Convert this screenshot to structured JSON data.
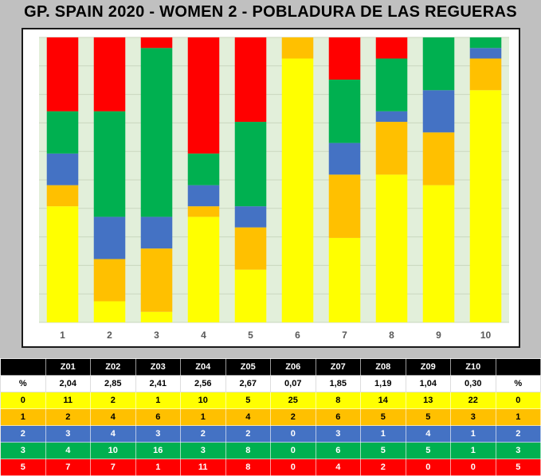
{
  "title": "GP. SPAIN 2020 - WOMEN 2 - POBLADURA DE LAS REGUERAS",
  "chart_data": {
    "type": "bar",
    "stacked": true,
    "categories": [
      "1",
      "2",
      "3",
      "4",
      "5",
      "6",
      "7",
      "8",
      "9",
      "10"
    ],
    "ylim": [
      0,
      27
    ],
    "grid": true,
    "series": [
      {
        "level": "0",
        "color": "#ffff00",
        "values": [
          11,
          2,
          1,
          10,
          5,
          25,
          8,
          14,
          13,
          22
        ]
      },
      {
        "level": "1",
        "color": "#ffc000",
        "values": [
          2,
          4,
          6,
          1,
          4,
          2,
          6,
          5,
          5,
          3
        ]
      },
      {
        "level": "2",
        "color": "#4472c4",
        "values": [
          3,
          4,
          3,
          2,
          2,
          0,
          3,
          1,
          4,
          1
        ]
      },
      {
        "level": "3",
        "color": "#00b050",
        "values": [
          4,
          10,
          16,
          3,
          8,
          0,
          6,
          5,
          5,
          1
        ]
      },
      {
        "level": "5",
        "color": "#ff0000",
        "values": [
          7,
          7,
          1,
          11,
          8,
          0,
          4,
          2,
          0,
          0
        ]
      }
    ]
  },
  "table": {
    "header": [
      "",
      "Z01",
      "Z02",
      "Z03",
      "Z04",
      "Z05",
      "Z06",
      "Z07",
      "Z08",
      "Z09",
      "Z10",
      ""
    ],
    "avg_row": [
      "%",
      "2,04",
      "2,85",
      "2,41",
      "2,56",
      "2,67",
      "0,07",
      "1,85",
      "1,19",
      "1,04",
      "0,30",
      "%"
    ],
    "rows": [
      {
        "cls": "lvl-yellow",
        "cells": [
          "0",
          "11",
          "2",
          "1",
          "10",
          "5",
          "25",
          "8",
          "14",
          "13",
          "22",
          "0"
        ]
      },
      {
        "cls": "lvl-orange",
        "cells": [
          "1",
          "2",
          "4",
          "6",
          "1",
          "4",
          "2",
          "6",
          "5",
          "5",
          "3",
          "1"
        ]
      },
      {
        "cls": "lvl-blue",
        "cells": [
          "2",
          "3",
          "4",
          "3",
          "2",
          "2",
          "0",
          "3",
          "1",
          "4",
          "1",
          "2"
        ]
      },
      {
        "cls": "lvl-green",
        "cells": [
          "3",
          "4",
          "10",
          "16",
          "3",
          "8",
          "0",
          "6",
          "5",
          "5",
          "1",
          "3"
        ]
      },
      {
        "cls": "lvl-red",
        "cells": [
          "5",
          "7",
          "7",
          "1",
          "11",
          "8",
          "0",
          "4",
          "2",
          "0",
          "0",
          "5"
        ]
      }
    ]
  }
}
